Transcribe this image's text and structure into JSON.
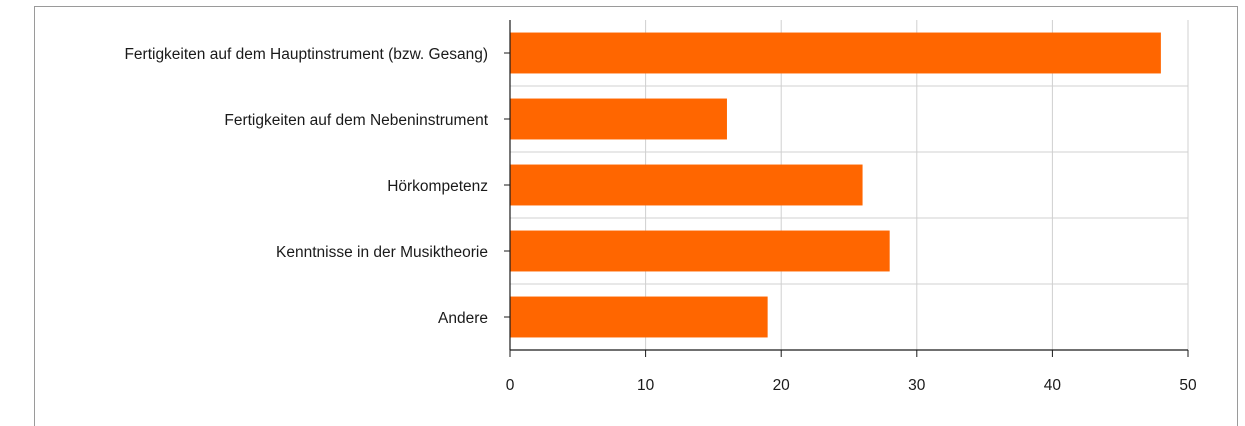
{
  "chart_data": {
    "type": "bar",
    "orientation": "horizontal",
    "categories": [
      "Fertigkeiten auf dem Hauptinstrument (bzw. Gesang)",
      "Fertigkeiten auf dem Nebeninstrument",
      "Hörkompetenz",
      "Kenntnisse in der Musiktheorie",
      "Andere"
    ],
    "values": [
      48,
      16,
      26,
      28,
      19
    ],
    "xlim": [
      0,
      50
    ],
    "xticks": [
      0,
      10,
      20,
      30,
      40,
      50
    ],
    "grid": true,
    "legend": "none",
    "colors": {
      "bar": "#ff6600",
      "grid": "#d0d0d0",
      "axis": "#1a1a1a"
    }
  }
}
